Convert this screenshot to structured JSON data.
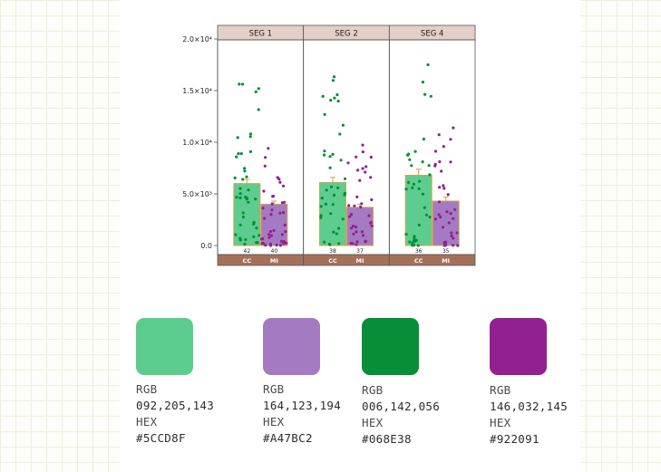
{
  "chart_data": {
    "type": "bar",
    "title": "",
    "xlabel": "",
    "ylabel": "",
    "ylim": [
      0,
      22000
    ],
    "yticks": [
      {
        "value": 0,
        "label": "0.0"
      },
      {
        "value": 5000,
        "label": "5.0×10³"
      },
      {
        "value": 10000,
        "label": "1.0×10⁴"
      },
      {
        "value": 15000,
        "label": "1.5×10⁴"
      },
      {
        "value": 20000,
        "label": "2.0×10⁴"
      }
    ],
    "facets": [
      {
        "name": "SEG 1",
        "bars": [
          {
            "group": "CC",
            "mean": 6000,
            "err": 400,
            "n": "42"
          },
          {
            "group": "MI",
            "mean": 4000,
            "err": 300,
            "n": "40"
          }
        ]
      },
      {
        "name": "SEG 2",
        "bars": [
          {
            "group": "CC",
            "mean": 6100,
            "err": 500,
            "n": "38"
          },
          {
            "group": "MI",
            "mean": 3700,
            "err": 300,
            "n": "37"
          }
        ]
      },
      {
        "name": "SEG 4",
        "bars": [
          {
            "group": "CC",
            "mean": 6800,
            "err": 600,
            "n": "36"
          },
          {
            "group": "MI",
            "mean": 4300,
            "err": 400,
            "n": "35"
          }
        ]
      }
    ],
    "series": [
      {
        "name": "CC",
        "color": "#5CCD8F",
        "point_color": "#068E38"
      },
      {
        "name": "MI",
        "color": "#A47BC2",
        "point_color": "#922091"
      }
    ],
    "colors": {
      "strip": "#e2cfc6",
      "bottom_strip": "#a5705a",
      "frame": "#555555",
      "bar_border": "#d4a34a"
    }
  },
  "palette": [
    {
      "rgb_label": "RGB",
      "rgb": "092,205,143",
      "hex_label": "HEX",
      "hex": "#5CCD8F",
      "color": "#5CCD8F"
    },
    {
      "rgb_label": "RGB",
      "rgb": "164,123,194",
      "hex_label": "HEX",
      "hex": "#A47BC2",
      "color": "#A47BC2"
    },
    {
      "rgb_label": "RGB",
      "rgb": "006,142,056",
      "hex_label": "HEX",
      "hex": "#068E38",
      "color": "#068E38"
    },
    {
      "rgb_label": "RGB",
      "rgb": "146,032,145",
      "hex_label": "HEX",
      "hex": "#922091",
      "color": "#922091"
    }
  ]
}
